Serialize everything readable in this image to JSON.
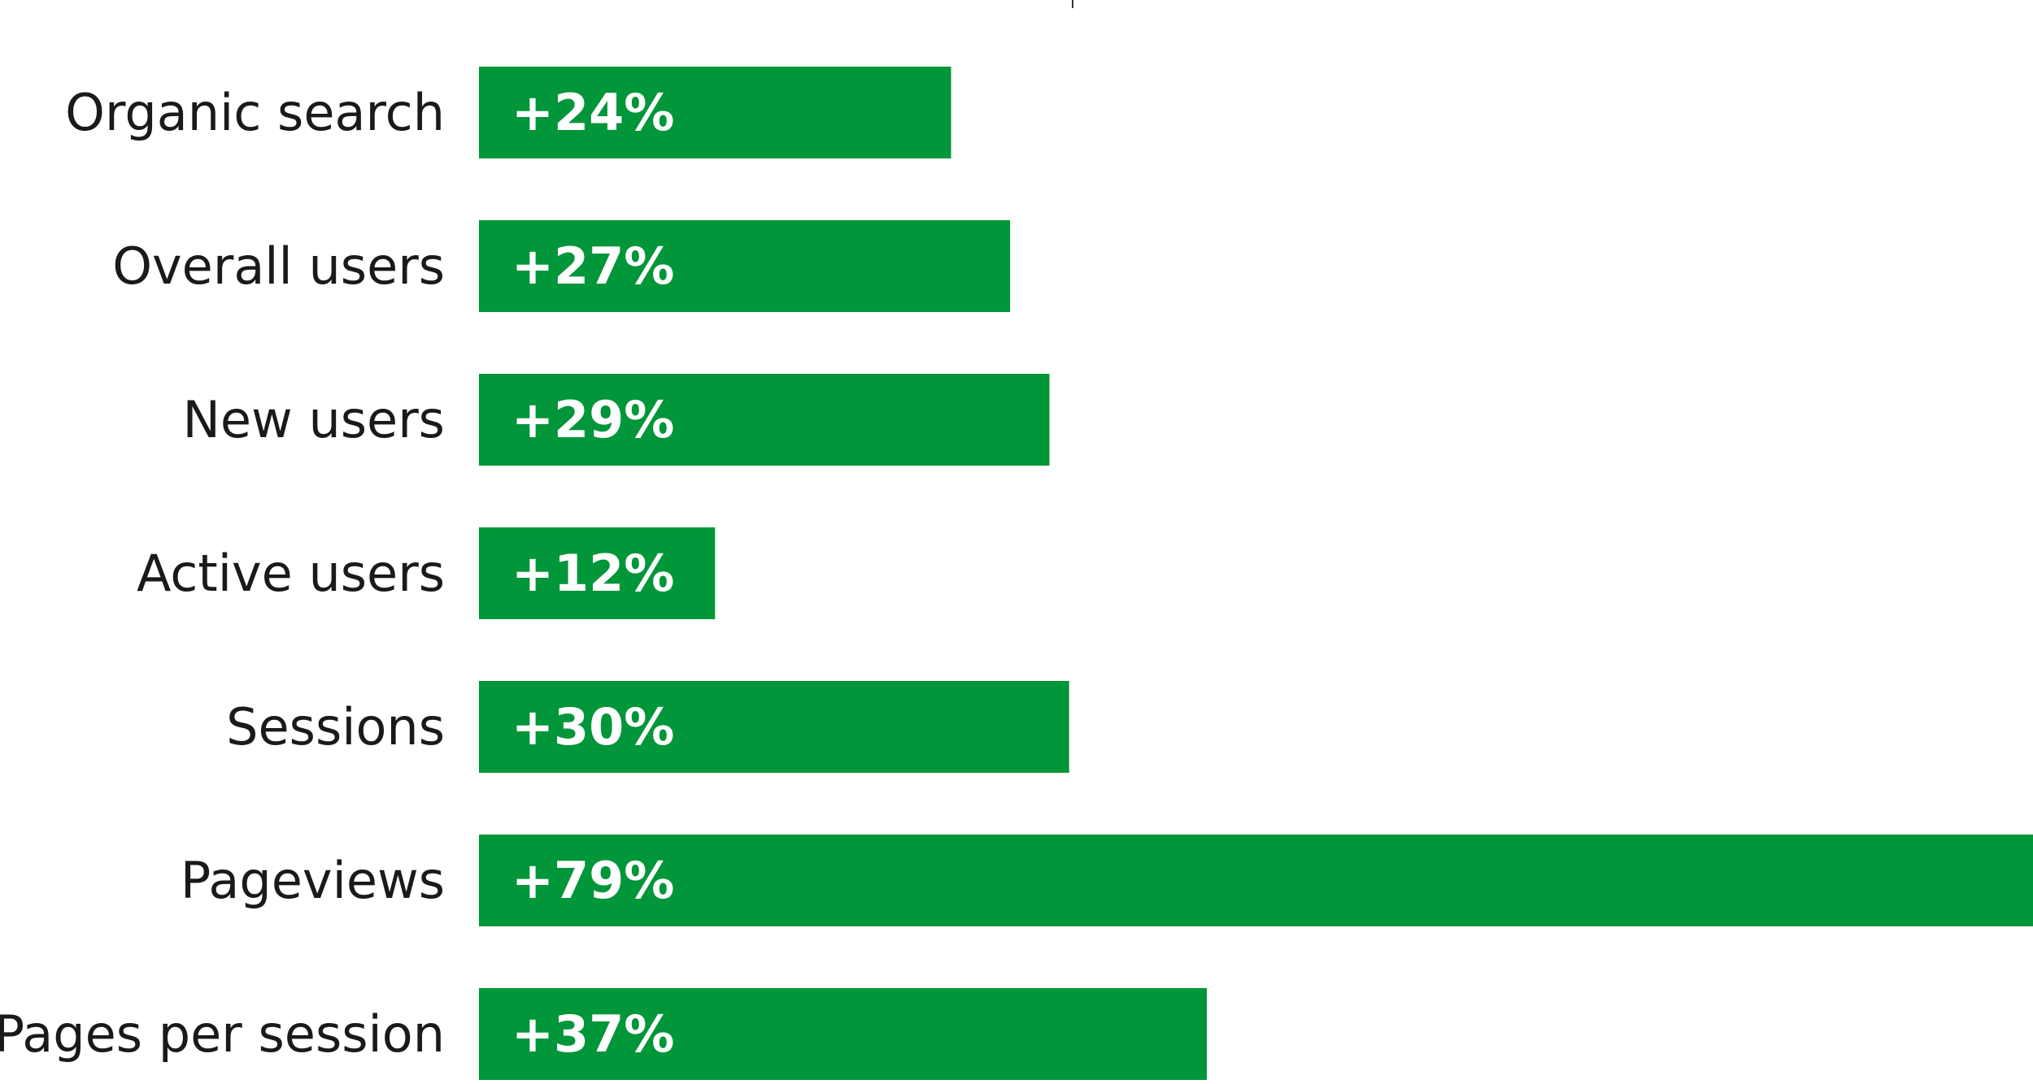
{
  "chart_data": {
    "type": "bar",
    "orientation": "horizontal",
    "categories": [
      "Organic search",
      "Overall users",
      "New users",
      "Active users",
      "Sessions",
      "Pageviews",
      "Pages per session"
    ],
    "values": [
      24,
      27,
      29,
      12,
      30,
      79,
      37
    ],
    "value_labels": [
      "+24%",
      "+27%",
      "+29%",
      "+12%",
      "+30%",
      "+79%",
      "+37%"
    ],
    "unit": "%",
    "xlim": [
      0,
      79
    ],
    "grid": false,
    "legend": "none",
    "colors": {
      "bar": "#009639",
      "bar_label": "#ffffff",
      "category_label": "#1a1a1a"
    }
  }
}
